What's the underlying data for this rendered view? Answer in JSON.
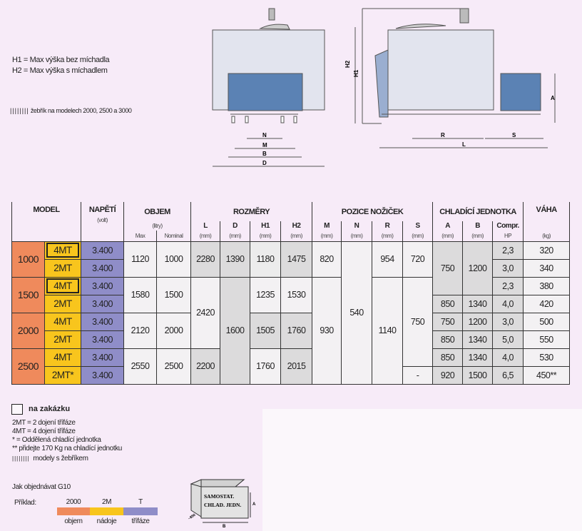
{
  "notes": {
    "h1": "H1 = Max výška bez míchadla",
    "h2": "H2 = Max výška s míchadlem",
    "ladder_marker": "||||||||",
    "ladder": "žebřík na modelech 2000, 2500 a 3000"
  },
  "drawing": {
    "front_labels": {
      "n": "N",
      "m": "M",
      "b": "B",
      "d": "D"
    },
    "side_labels": {
      "r": "R",
      "s": "S",
      "l": "L",
      "h1": "H1",
      "h2": "H2",
      "a": "A"
    },
    "colors": {
      "tank": "#e2e4ee",
      "unit": "#5b82b4"
    }
  },
  "table": {
    "headers": {
      "model": "MODEL",
      "napeti": "NAPĚTÍ",
      "napeti_unit": "(volt)",
      "objem": "OBJEM",
      "objem_unit": "(litry)",
      "max": "Max",
      "nominal": "Nominal",
      "rozmery": "ROZMĚRY",
      "l": "L",
      "d": "D",
      "h1": "H1",
      "h2": "H2",
      "pozice": "POZICE NOŽIČEK",
      "m": "M",
      "n": "N",
      "r": "R",
      "s": "S",
      "chlad": "CHLADÍCÍ JEDNOTKA",
      "a": "A",
      "b": "B",
      "compr": "Compr.",
      "hp": "HP",
      "vaha": "VÁHA",
      "kg": "(kg)",
      "mm": "(mm)"
    },
    "models": [
      "1000",
      "1500",
      "2000",
      "2500"
    ],
    "rows": [
      {
        "type": "4MT",
        "voltage": "3.400",
        "compr": "2,3",
        "weight": "320"
      },
      {
        "type": "2MT",
        "voltage": "3.400",
        "compr": "3,0",
        "weight": "340"
      },
      {
        "type": "4MT",
        "voltage": "3.400",
        "compr": "2,3",
        "weight": "380"
      },
      {
        "type": "2MT",
        "voltage": "3.400",
        "compr": "4,0",
        "weight": "420"
      },
      {
        "type": "4MT",
        "voltage": "3.400",
        "compr": "3,0",
        "weight": "500"
      },
      {
        "type": "2MT",
        "voltage": "3.400",
        "compr": "5,0",
        "weight": "550"
      },
      {
        "type": "4MT",
        "voltage": "3.400",
        "compr": "4,0",
        "weight": "530"
      },
      {
        "type": "2MT*",
        "voltage": "3.400",
        "compr": "6,5",
        "weight": "450**"
      }
    ],
    "objem_max": [
      "1120",
      "1580",
      "2120",
      "2550"
    ],
    "objem_nominal": [
      "1000",
      "1500",
      "2000",
      "2500"
    ],
    "l": [
      "2280",
      "2420",
      "2200"
    ],
    "d": [
      "1390",
      "1600"
    ],
    "h1": [
      "1180",
      "1235",
      "1505",
      "1760"
    ],
    "h2": [
      "1475",
      "1530",
      "1760",
      "2015"
    ],
    "m": [
      "820",
      "930"
    ],
    "n": "540",
    "r": [
      "954",
      "1140"
    ],
    "s": [
      "720",
      "750",
      "-"
    ],
    "a": [
      "750",
      "850",
      "750",
      "850",
      "850",
      "920"
    ],
    "b": [
      "1200",
      "1340",
      "1200",
      "1340",
      "1340",
      "1500"
    ]
  },
  "legend": {
    "custom": "na zakázku",
    "l1": "2MT = 2 dojení třífáze",
    "l2": "4MT = 4 dojení třífáze",
    "l3": "* =  Oddělená chladící jednotka",
    "l4": "** přidejte 170 Kg na chladící jednotku",
    "ladder_marker": "||||||||",
    "l5": "modely s žebříkem",
    "order_title": "Jak objednávat G10",
    "example": "Příklad:",
    "parts": [
      {
        "code": "2000",
        "label": "objem",
        "color": "#ef8a5c"
      },
      {
        "code": "2M",
        "label": "nádoje",
        "color": "#f8c51d"
      },
      {
        "code": "T",
        "label": "třífáze",
        "color": "#8f8dc8"
      }
    ],
    "unit_box": {
      "line1": "SAMOSTAT.",
      "line2": "CHLAD. JEDN.",
      "a": "A",
      "b": "B",
      "depth": "~850"
    }
  }
}
